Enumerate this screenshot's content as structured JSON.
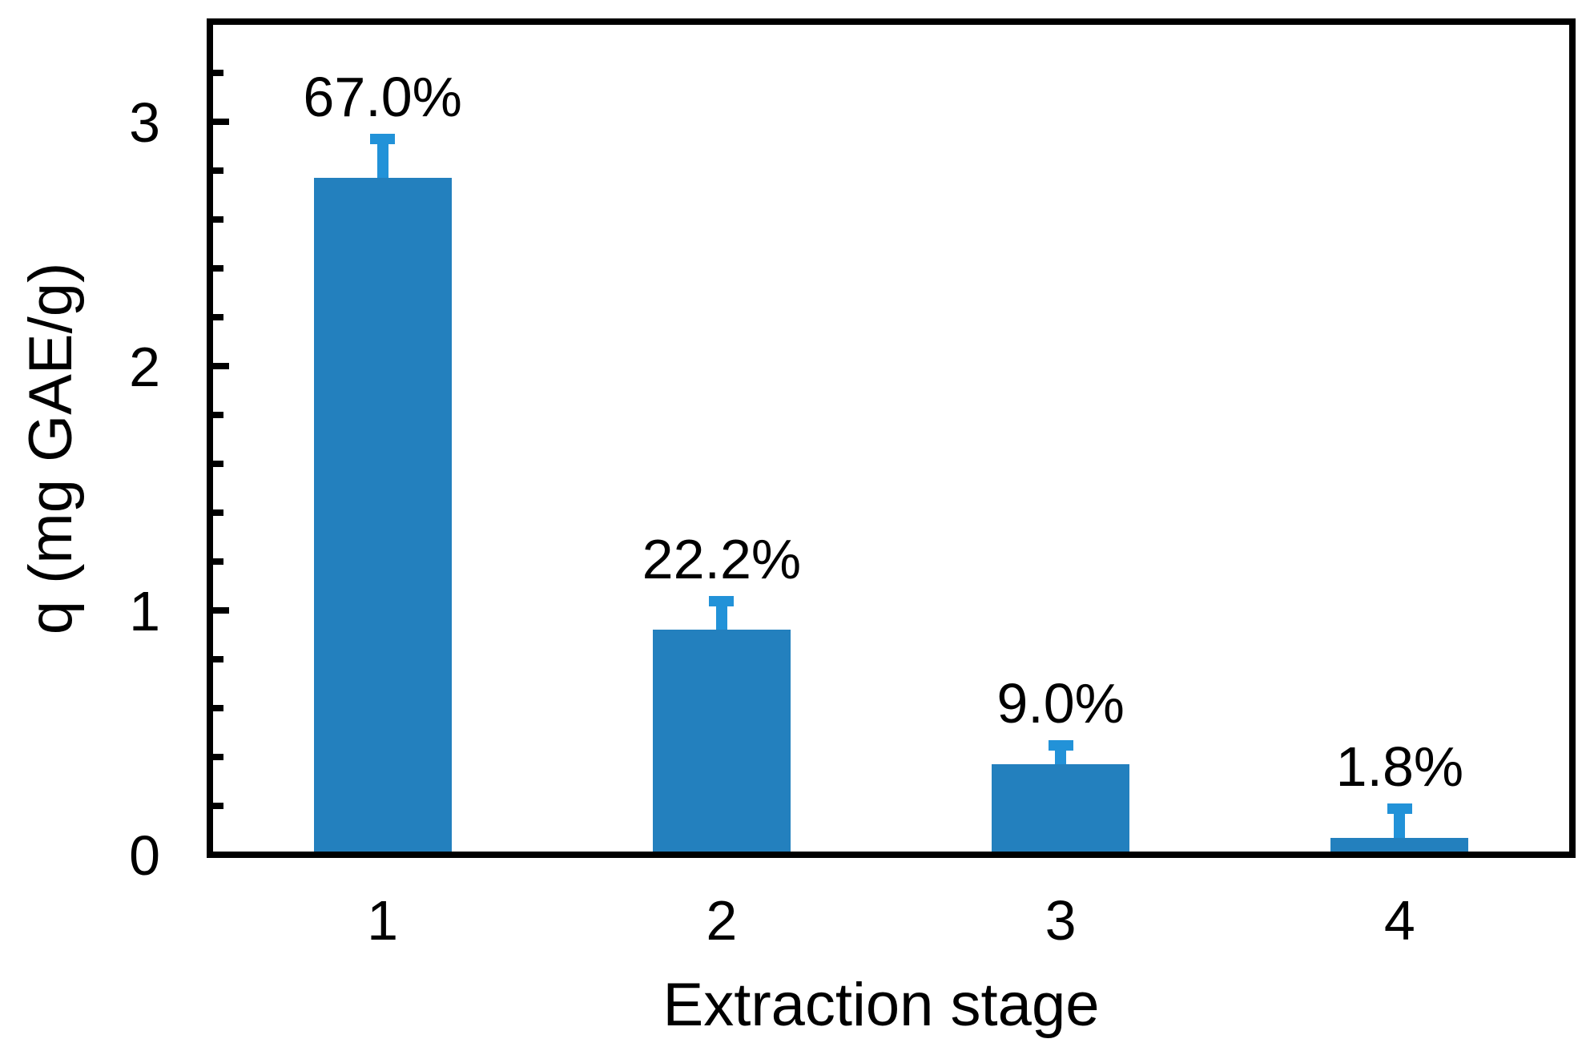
{
  "chart_data": {
    "type": "bar",
    "title": "",
    "xlabel": "Extraction stage",
    "ylabel": "q (mg GAE/g)",
    "categories": [
      "1",
      "2",
      "3",
      "4"
    ],
    "values": [
      2.77,
      0.92,
      0.37,
      0.07
    ],
    "errors_upper": [
      0.18,
      0.14,
      0.1,
      0.14
    ],
    "point_labels": [
      "67.0%",
      "22.2%",
      "9.0%",
      "1.8%"
    ],
    "ylim": [
      0,
      3.41
    ],
    "yticks_major": [
      0,
      1,
      2,
      3
    ],
    "ytick_minor_step": 0.2,
    "grid": false,
    "legend": "none",
    "bar_color": "#2380BE",
    "error_bar_color": "#2292D8",
    "axis_color": "#000000",
    "text_color": "#000000",
    "background_color": "#FFFFFF"
  }
}
